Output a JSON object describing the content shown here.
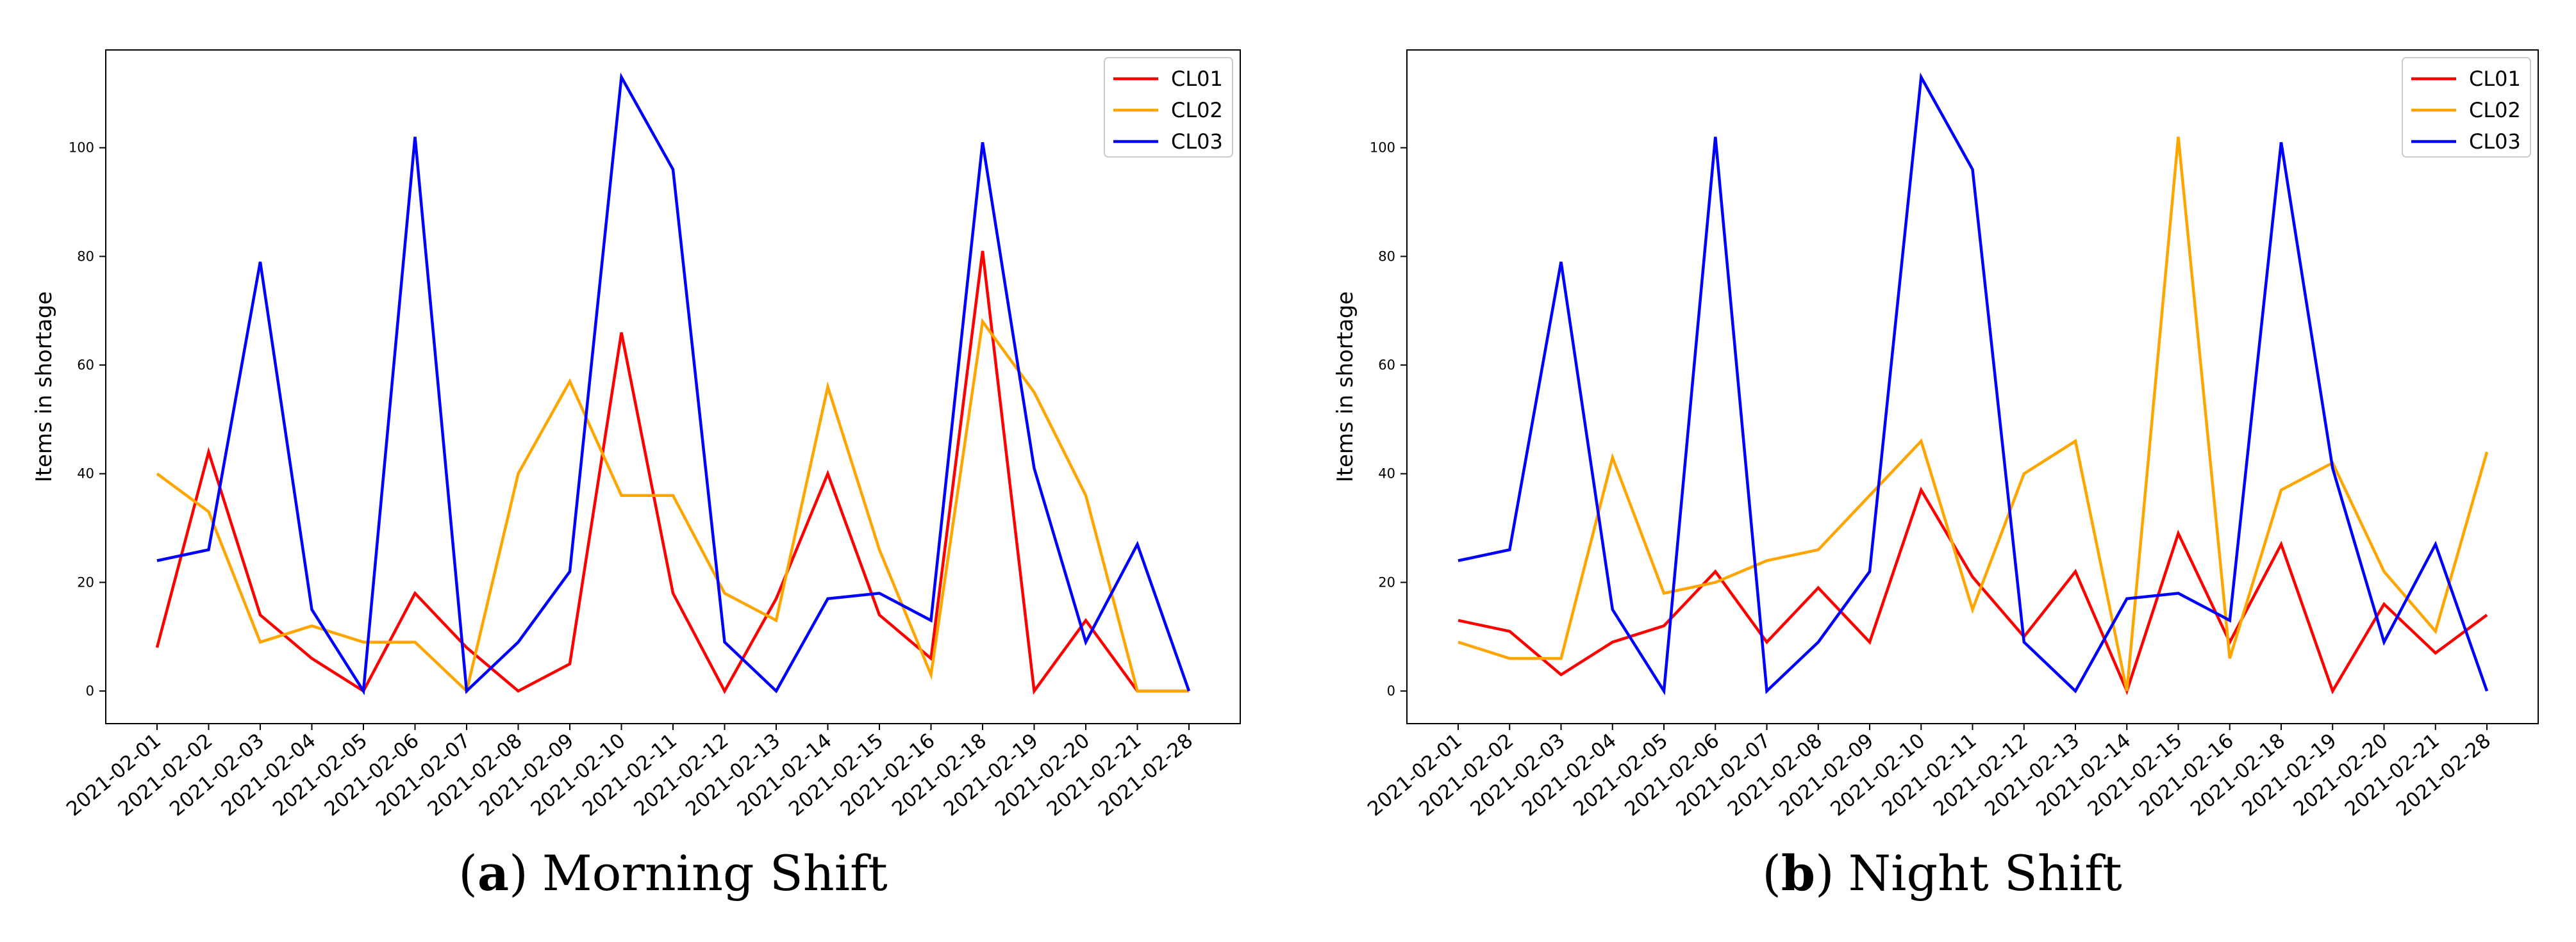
{
  "colors": {
    "CL01": "#ff0000",
    "CL02": "#ffa500",
    "CL03": "#0000ff"
  },
  "chart_data": [
    {
      "type": "line",
      "title": "",
      "caption_letter": "a",
      "caption_open": "(",
      "caption_close": ")",
      "caption_text": "Morning Shift",
      "xlabel": "",
      "ylabel": "Items in shortage",
      "ylim": [
        -6,
        118
      ],
      "yticks": [
        0,
        20,
        40,
        60,
        80,
        100
      ],
      "categories": [
        "2021-02-01",
        "2021-02-02",
        "2021-02-03",
        "2021-02-04",
        "2021-02-05",
        "2021-02-06",
        "2021-02-07",
        "2021-02-08",
        "2021-02-09",
        "2021-02-10",
        "2021-02-11",
        "2021-02-12",
        "2021-02-13",
        "2021-02-14",
        "2021-02-15",
        "2021-02-16",
        "2021-02-18",
        "2021-02-19",
        "2021-02-20",
        "2021-02-21",
        "2021-02-28"
      ],
      "legend": "top-right",
      "series": [
        {
          "name": "CL01",
          "values": [
            8,
            44,
            14,
            6,
            0,
            18,
            8,
            0,
            5,
            66,
            18,
            0,
            17,
            40,
            14,
            6,
            81,
            0,
            13,
            0,
            0
          ]
        },
        {
          "name": "CL02",
          "values": [
            40,
            33,
            9,
            12,
            9,
            9,
            0,
            40,
            57,
            36,
            36,
            18,
            13,
            56,
            26,
            3,
            68,
            55,
            36,
            0,
            0
          ]
        },
        {
          "name": "CL03",
          "values": [
            24,
            26,
            79,
            15,
            0,
            102,
            0,
            9,
            22,
            113,
            96,
            9,
            0,
            17,
            18,
            13,
            101,
            41,
            9,
            27,
            0
          ]
        }
      ]
    },
    {
      "type": "line",
      "title": "",
      "caption_letter": "b",
      "caption_open": "(",
      "caption_close": ")",
      "caption_text": "Night Shift",
      "xlabel": "",
      "ylabel": "Items in shortage",
      "ylim": [
        -6,
        118
      ],
      "yticks": [
        0,
        20,
        40,
        60,
        80,
        100
      ],
      "categories": [
        "2021-02-01",
        "2021-02-02",
        "2021-02-03",
        "2021-02-04",
        "2021-02-05",
        "2021-02-06",
        "2021-02-07",
        "2021-02-08",
        "2021-02-09",
        "2021-02-10",
        "2021-02-11",
        "2021-02-12",
        "2021-02-13",
        "2021-02-14",
        "2021-02-15",
        "2021-02-16",
        "2021-02-18",
        "2021-02-19",
        "2021-02-20",
        "2021-02-21",
        "2021-02-28"
      ],
      "legend": "top-right",
      "series": [
        {
          "name": "CL01",
          "values": [
            13,
            11,
            3,
            9,
            12,
            22,
            9,
            19,
            9,
            37,
            21,
            10,
            22,
            0,
            29,
            9,
            27,
            0,
            16,
            7,
            14
          ]
        },
        {
          "name": "CL02",
          "values": [
            9,
            6,
            6,
            43,
            18,
            20,
            24,
            26,
            36,
            46,
            15,
            40,
            46,
            0,
            102,
            6,
            37,
            42,
            22,
            11,
            44
          ]
        },
        {
          "name": "CL03",
          "values": [
            24,
            26,
            79,
            15,
            0,
            102,
            0,
            9,
            22,
            113,
            96,
            9,
            0,
            17,
            18,
            13,
            101,
            41,
            9,
            27,
            0
          ]
        }
      ]
    }
  ]
}
